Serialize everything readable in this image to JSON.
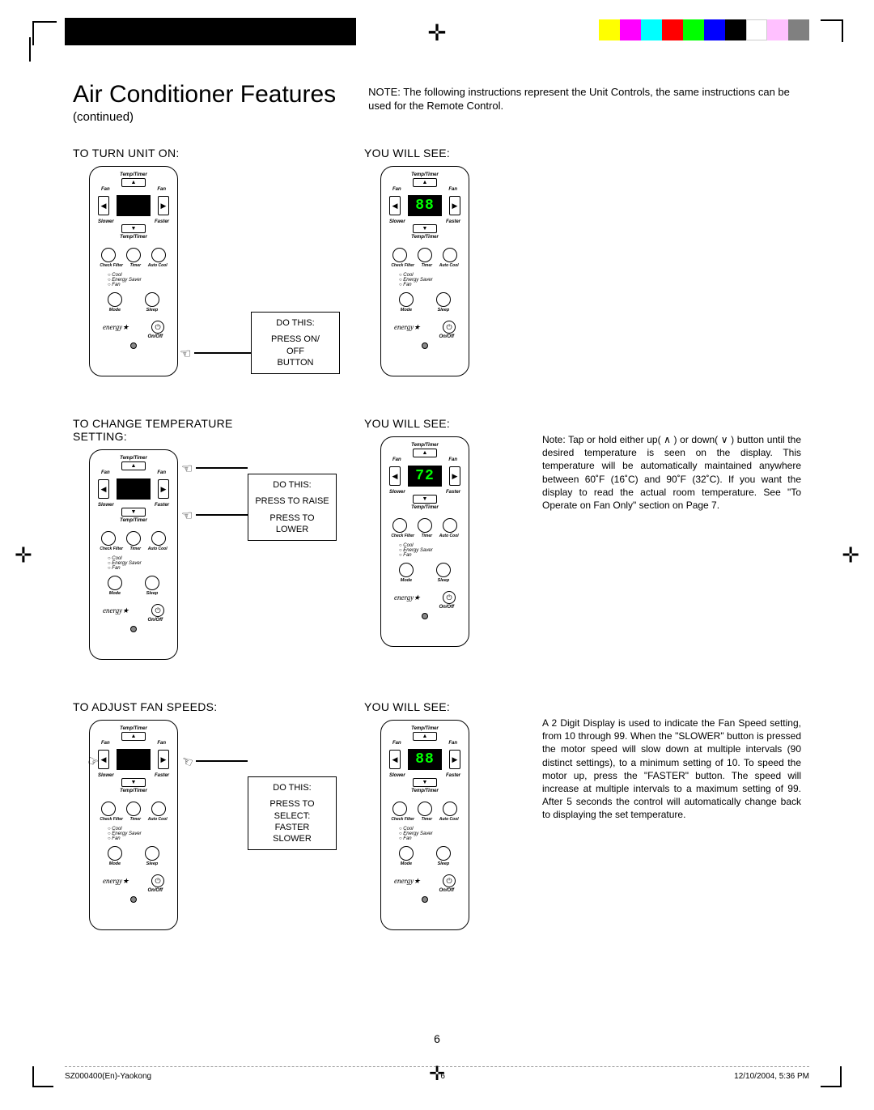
{
  "colorbar": [
    "#ffff00",
    "#ff00ff",
    "#00ffff",
    "#ff0000",
    "#00ff00",
    "#0000ff",
    "#000000",
    "#ffffff",
    "#ffc0ff",
    "#808080"
  ],
  "title": "Air Conditioner Features",
  "continued": "(continued)",
  "top_note": "NOTE: The following instructions represent the Unit Controls, the same instructions can be used for the Remote Control.",
  "sections": {
    "s1": {
      "left_head": "TO TURN UNIT ON:",
      "right_head": "YOU WILL SEE:",
      "callout_title": "DO THIS:",
      "callout_body1": "PRESS ON/",
      "callout_body2": "OFF",
      "callout_body3": "BUTTON",
      "display_left": "",
      "display_right": "88"
    },
    "s2": {
      "left_head": "TO CHANGE TEMPERATURE SETTING:",
      "right_head": "YOU WILL SEE:",
      "callout_title": "DO THIS:",
      "callout_body1": "PRESS TO RAISE",
      "callout_body2": "PRESS TO LOWER",
      "display_left": "",
      "display_right": "72",
      "note": "Note: Tap or hold either up( ∧ ) or down( ∨ ) button until the desired temperature is seen on the display. This temperature will be automatically maintained anywhere between 60˚F (16˚C) and 90˚F (32˚C). If you want the display to read the actual room temperature. See \"To Operate on Fan Only\" section on Page 7."
    },
    "s3": {
      "left_head": "TO ADJUST FAN SPEEDS:",
      "right_head": "YOU WILL SEE:",
      "callout_title": "DO THIS:",
      "callout_body1": "PRESS TO SELECT:",
      "callout_body2": "FASTER",
      "callout_body3": "SLOWER",
      "display_left": "",
      "display_right": "88",
      "note": "A 2 Digit Display is used to indicate the Fan Speed setting, from 10 through 99. When the \"SLOWER\" button is pressed the motor speed will slow down at multiple intervals (90 distinct settings), to a minimum setting of 10. To speed the motor up, press the \"FASTER\" button. The speed will increase at multiple intervals to a maximum setting of 99. After 5 seconds the control will automatically change back to displaying the set temperature."
    }
  },
  "remote": {
    "temp_timer": "Temp/Timer",
    "fan": "Fan",
    "slower": "Slower",
    "faster": "Faster",
    "timer": "Timer",
    "check_filter": "Check Filter",
    "auto_cool": "Auto Cool",
    "cool": "Cool",
    "energy_saver": "Energy Saver",
    "fan_mode": "Fan",
    "mode": "Mode",
    "sleep": "Sleep",
    "energy": "energy",
    "onoff": "On/Off"
  },
  "page_number": "6",
  "footer": {
    "left": "SZ000400(En)-Yaokong",
    "mid": "6",
    "right": "12/10/2004, 5:36 PM"
  }
}
